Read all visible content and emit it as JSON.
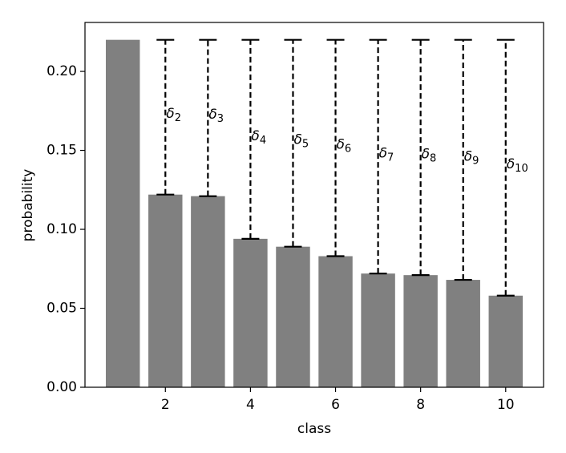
{
  "chart_data": {
    "type": "bar",
    "x": [
      1,
      2,
      3,
      4,
      5,
      6,
      7,
      8,
      9,
      10
    ],
    "values": [
      0.22,
      0.122,
      0.121,
      0.094,
      0.089,
      0.083,
      0.072,
      0.071,
      0.068,
      0.058
    ],
    "color": "#808080",
    "xlabel": "class",
    "ylabel": "probability",
    "xlim": [
      0.11,
      10.89
    ],
    "xticks": [
      2,
      4,
      6,
      8,
      10
    ],
    "ylim": [
      0,
      0.231
    ],
    "yticks": [
      {
        "value": 0,
        "label": "0.00"
      },
      {
        "value": 0.05,
        "label": "0.05"
      },
      {
        "value": 0.1,
        "label": "0.10"
      },
      {
        "value": 0.15,
        "label": "0.15"
      },
      {
        "value": 0.2,
        "label": "0.20"
      }
    ],
    "annotations": [
      null,
      {
        "text": "δ",
        "sub": "2"
      },
      {
        "text": "δ",
        "sub": "3"
      },
      {
        "text": "δ",
        "sub": "4"
      },
      {
        "text": "δ",
        "sub": "5"
      },
      {
        "text": "δ",
        "sub": "6"
      },
      {
        "text": "δ",
        "sub": "7"
      },
      {
        "text": "δ",
        "sub": "8"
      },
      {
        "text": "δ",
        "sub": "9"
      },
      {
        "text": "δ",
        "sub": "10"
      }
    ]
  }
}
